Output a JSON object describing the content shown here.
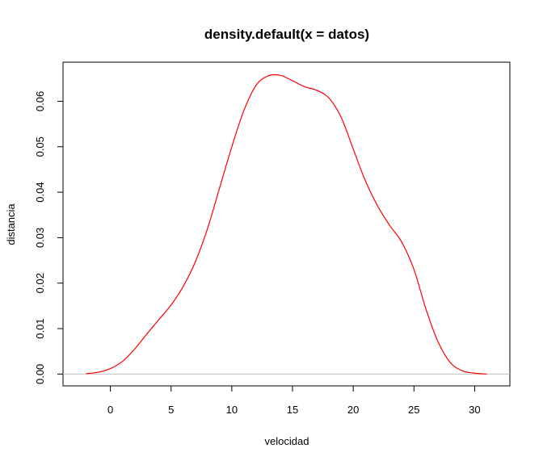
{
  "chart_data": {
    "type": "line",
    "title": "density.default(x = datos)",
    "xlabel": "velocidad",
    "ylabel": "distancia",
    "xlim": [
      -3.9,
      32.9
    ],
    "ylim": [
      -0.0026,
      0.0686
    ],
    "x_ticks": [
      0,
      5,
      10,
      15,
      20,
      25,
      30
    ],
    "y_ticks": [
      0.0,
      0.01,
      0.02,
      0.03,
      0.04,
      0.05,
      0.06
    ],
    "x_tick_labels": [
      "0",
      "5",
      "10",
      "15",
      "20",
      "25",
      "30"
    ],
    "y_tick_labels": [
      "0.00",
      "0.01",
      "0.02",
      "0.03",
      "0.04",
      "0.05",
      "0.06"
    ],
    "grid": false,
    "legend": "none",
    "baseline": 0,
    "series": [
      {
        "color": "#ff0000",
        "x": [
          -2,
          -1,
          0,
          1,
          2,
          3,
          4,
          5,
          6,
          7,
          8,
          9,
          10,
          11,
          12,
          13,
          14,
          15,
          16,
          17,
          18,
          19,
          20,
          21,
          22,
          23,
          24,
          25,
          26,
          27,
          28,
          29,
          30,
          31
        ],
        "y": [
          0.0001,
          0.0004,
          0.0012,
          0.0028,
          0.0055,
          0.0088,
          0.012,
          0.0152,
          0.0193,
          0.0247,
          0.032,
          0.041,
          0.05,
          0.058,
          0.0635,
          0.0656,
          0.0657,
          0.0645,
          0.0632,
          0.0624,
          0.0607,
          0.0565,
          0.0495,
          0.0425,
          0.037,
          0.0327,
          0.029,
          0.023,
          0.0142,
          0.007,
          0.0025,
          0.0007,
          0.0002,
          0.0
        ]
      }
    ],
    "colors": {
      "baseline": "#bebebe",
      "axis": "#000000"
    }
  }
}
